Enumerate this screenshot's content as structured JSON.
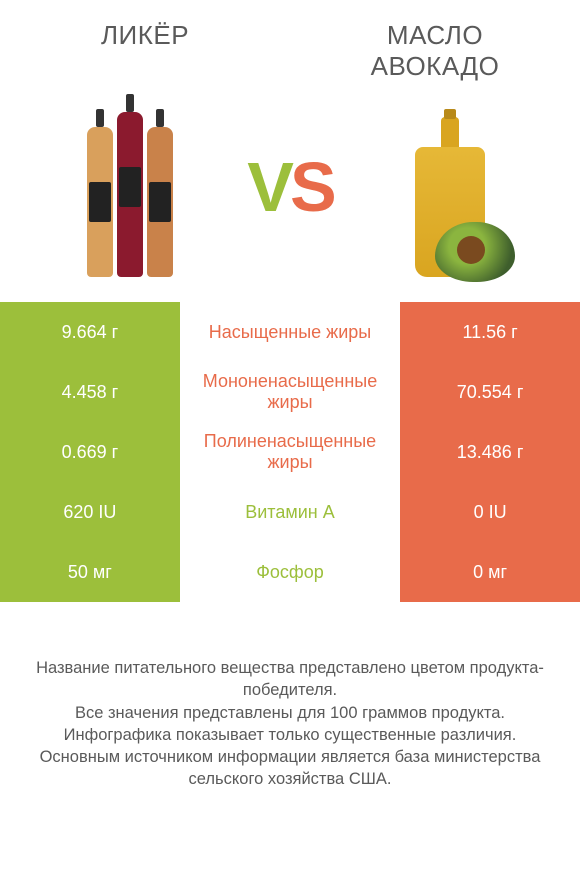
{
  "left_title": "ЛИКЁР",
  "right_title": "МАСЛО АВОКАДО",
  "vs_v": "V",
  "vs_s": "S",
  "colors": {
    "green": "#9CBF3B",
    "orange": "#E86B4A",
    "text": "#5a5a5a",
    "bottle1": "#D9A05C",
    "bottle2": "#8B1A2E",
    "bottle3": "#C9824A"
  },
  "rows": [
    {
      "left": "9.664 г",
      "label": "Насыщенные жиры",
      "right": "11.56 г",
      "winner": "orange"
    },
    {
      "left": "4.458 г",
      "label": "Мононенасыщенные жиры",
      "right": "70.554 г",
      "winner": "orange"
    },
    {
      "left": "0.669 г",
      "label": "Полиненасыщенные жиры",
      "right": "13.486 г",
      "winner": "orange"
    },
    {
      "left": "620 IU",
      "label": "Витамин A",
      "right": "0 IU",
      "winner": "green"
    },
    {
      "left": "50 мг",
      "label": "Фосфор",
      "right": "0 мг",
      "winner": "green"
    }
  ],
  "footer": {
    "l1": "Название питательного вещества представлено цветом продукта-победителя.",
    "l2": "Все значения представлены для 100 граммов продукта.",
    "l3": "Инфографика показывает только существенные различия.",
    "l4": "Основным источником информации является база министерства сельского хозяйства США."
  }
}
